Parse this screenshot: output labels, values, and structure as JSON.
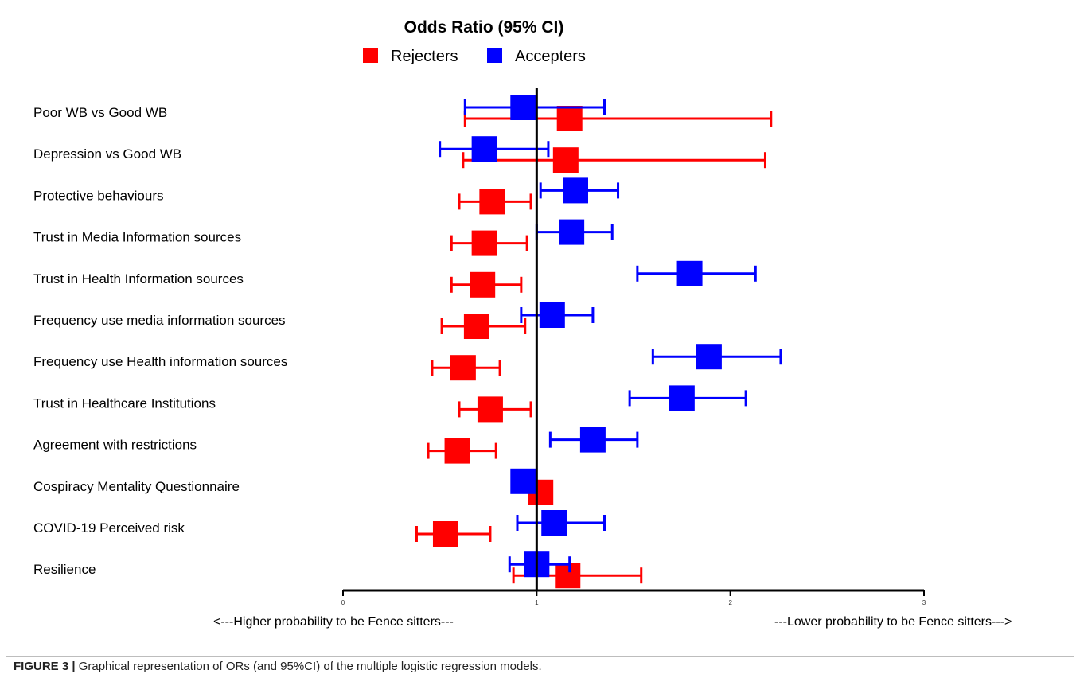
{
  "chart_data": {
    "type": "forest",
    "title": "Odds Ratio (95% CI)",
    "legend_position": "top-center",
    "xlim": [
      0,
      3
    ],
    "x_ticks": [
      "0",
      "1",
      "2",
      "3"
    ],
    "reference_line": 1,
    "x_left_annotation": "<---Higher probability to be Fence sitters---",
    "x_right_annotation": "---Lower probability to be Fence sitters--->",
    "categories": [
      "Poor WB vs Good WB",
      "Depression vs Good WB",
      "Protective behaviours",
      "Trust in Media Information sources",
      "Trust in Health Information sources",
      "Frequency use media information sources",
      "Frequency use Health information sources",
      "Trust in Healthcare Institutions",
      "Agreement with restrictions",
      "Cospiracy Mentality Questionnaire",
      "COVID-19 Perceived risk",
      "Resilience"
    ],
    "series": [
      {
        "name": "Rejecters",
        "color": "#ff0000",
        "or": [
          1.17,
          1.15,
          0.77,
          0.73,
          0.72,
          0.69,
          0.62,
          0.76,
          0.59,
          1.02,
          0.53,
          1.16
        ],
        "lower": [
          0.63,
          0.62,
          0.6,
          0.56,
          0.56,
          0.51,
          0.46,
          0.6,
          0.44,
          0.99,
          0.38,
          0.88
        ],
        "upper": [
          2.21,
          2.18,
          0.97,
          0.95,
          0.92,
          0.94,
          0.81,
          0.97,
          0.79,
          1.05,
          0.76,
          1.54
        ]
      },
      {
        "name": "Accepters",
        "color": "#0000ff",
        "or": [
          0.93,
          0.73,
          1.2,
          1.18,
          1.79,
          1.08,
          1.89,
          1.75,
          1.29,
          0.93,
          1.09,
          1.0
        ],
        "lower": [
          0.63,
          0.5,
          1.02,
          1.0,
          1.52,
          0.92,
          1.6,
          1.48,
          1.07,
          0.9,
          0.9,
          0.86
        ],
        "upper": [
          1.35,
          1.06,
          1.42,
          1.39,
          2.13,
          1.29,
          2.26,
          2.08,
          1.52,
          0.97,
          1.35,
          1.17
        ]
      }
    ]
  },
  "caption": {
    "label": "FIGURE 3 |",
    "text": " Graphical representation of ORs (and 95%CI) of the multiple logistic regression models."
  }
}
